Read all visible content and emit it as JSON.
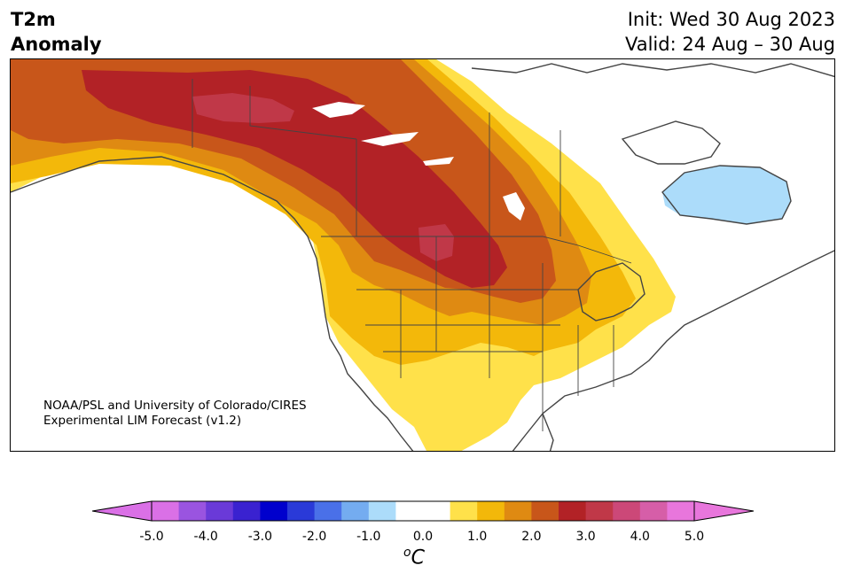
{
  "title": {
    "variable": "T2m",
    "subtitle": "Anomaly",
    "init": "Init: Wed 30 Aug 2023",
    "valid": "Valid: 24 Aug – 30 Aug"
  },
  "credit": {
    "line1": "NOAA/PSL and University of Colorado/CIRES",
    "line2": "Experimental LIM Forecast (v1.2)"
  },
  "colorbar": {
    "unit_base": "C",
    "unit_super": "o",
    "tick_labels": [
      "-5.0",
      "-4.0",
      "-3.0",
      "-2.0",
      "-1.0",
      "0.0",
      "1.0",
      "2.0",
      "3.0",
      "4.0",
      "5.0"
    ],
    "colors": [
      "#da70e6",
      "#9a54e0",
      "#6a3ad8",
      "#3a22d0",
      "#0000cd",
      "#2a3ad8",
      "#4a70e8",
      "#74acf0",
      "#acdcfa",
      "#ffffff",
      "#ffffff",
      "#ffe14a",
      "#f3b80a",
      "#df8a12",
      "#c8561a",
      "#b22226",
      "#c03848",
      "#cc4878",
      "#d65ea8",
      "#e876dc"
    ],
    "under_color": "#da70e6",
    "over_color": "#e876dc"
  },
  "colors": {
    "land_line": "#444444",
    "anomaly_05": "#ffe14a",
    "anomaly_10": "#f3b80a",
    "anomaly_15": "#df8a12",
    "anomaly_20": "#c8561a",
    "anomaly_25": "#b22226",
    "anomaly_30": "#c03848",
    "anomaly_neg": "#acdcfa"
  }
}
